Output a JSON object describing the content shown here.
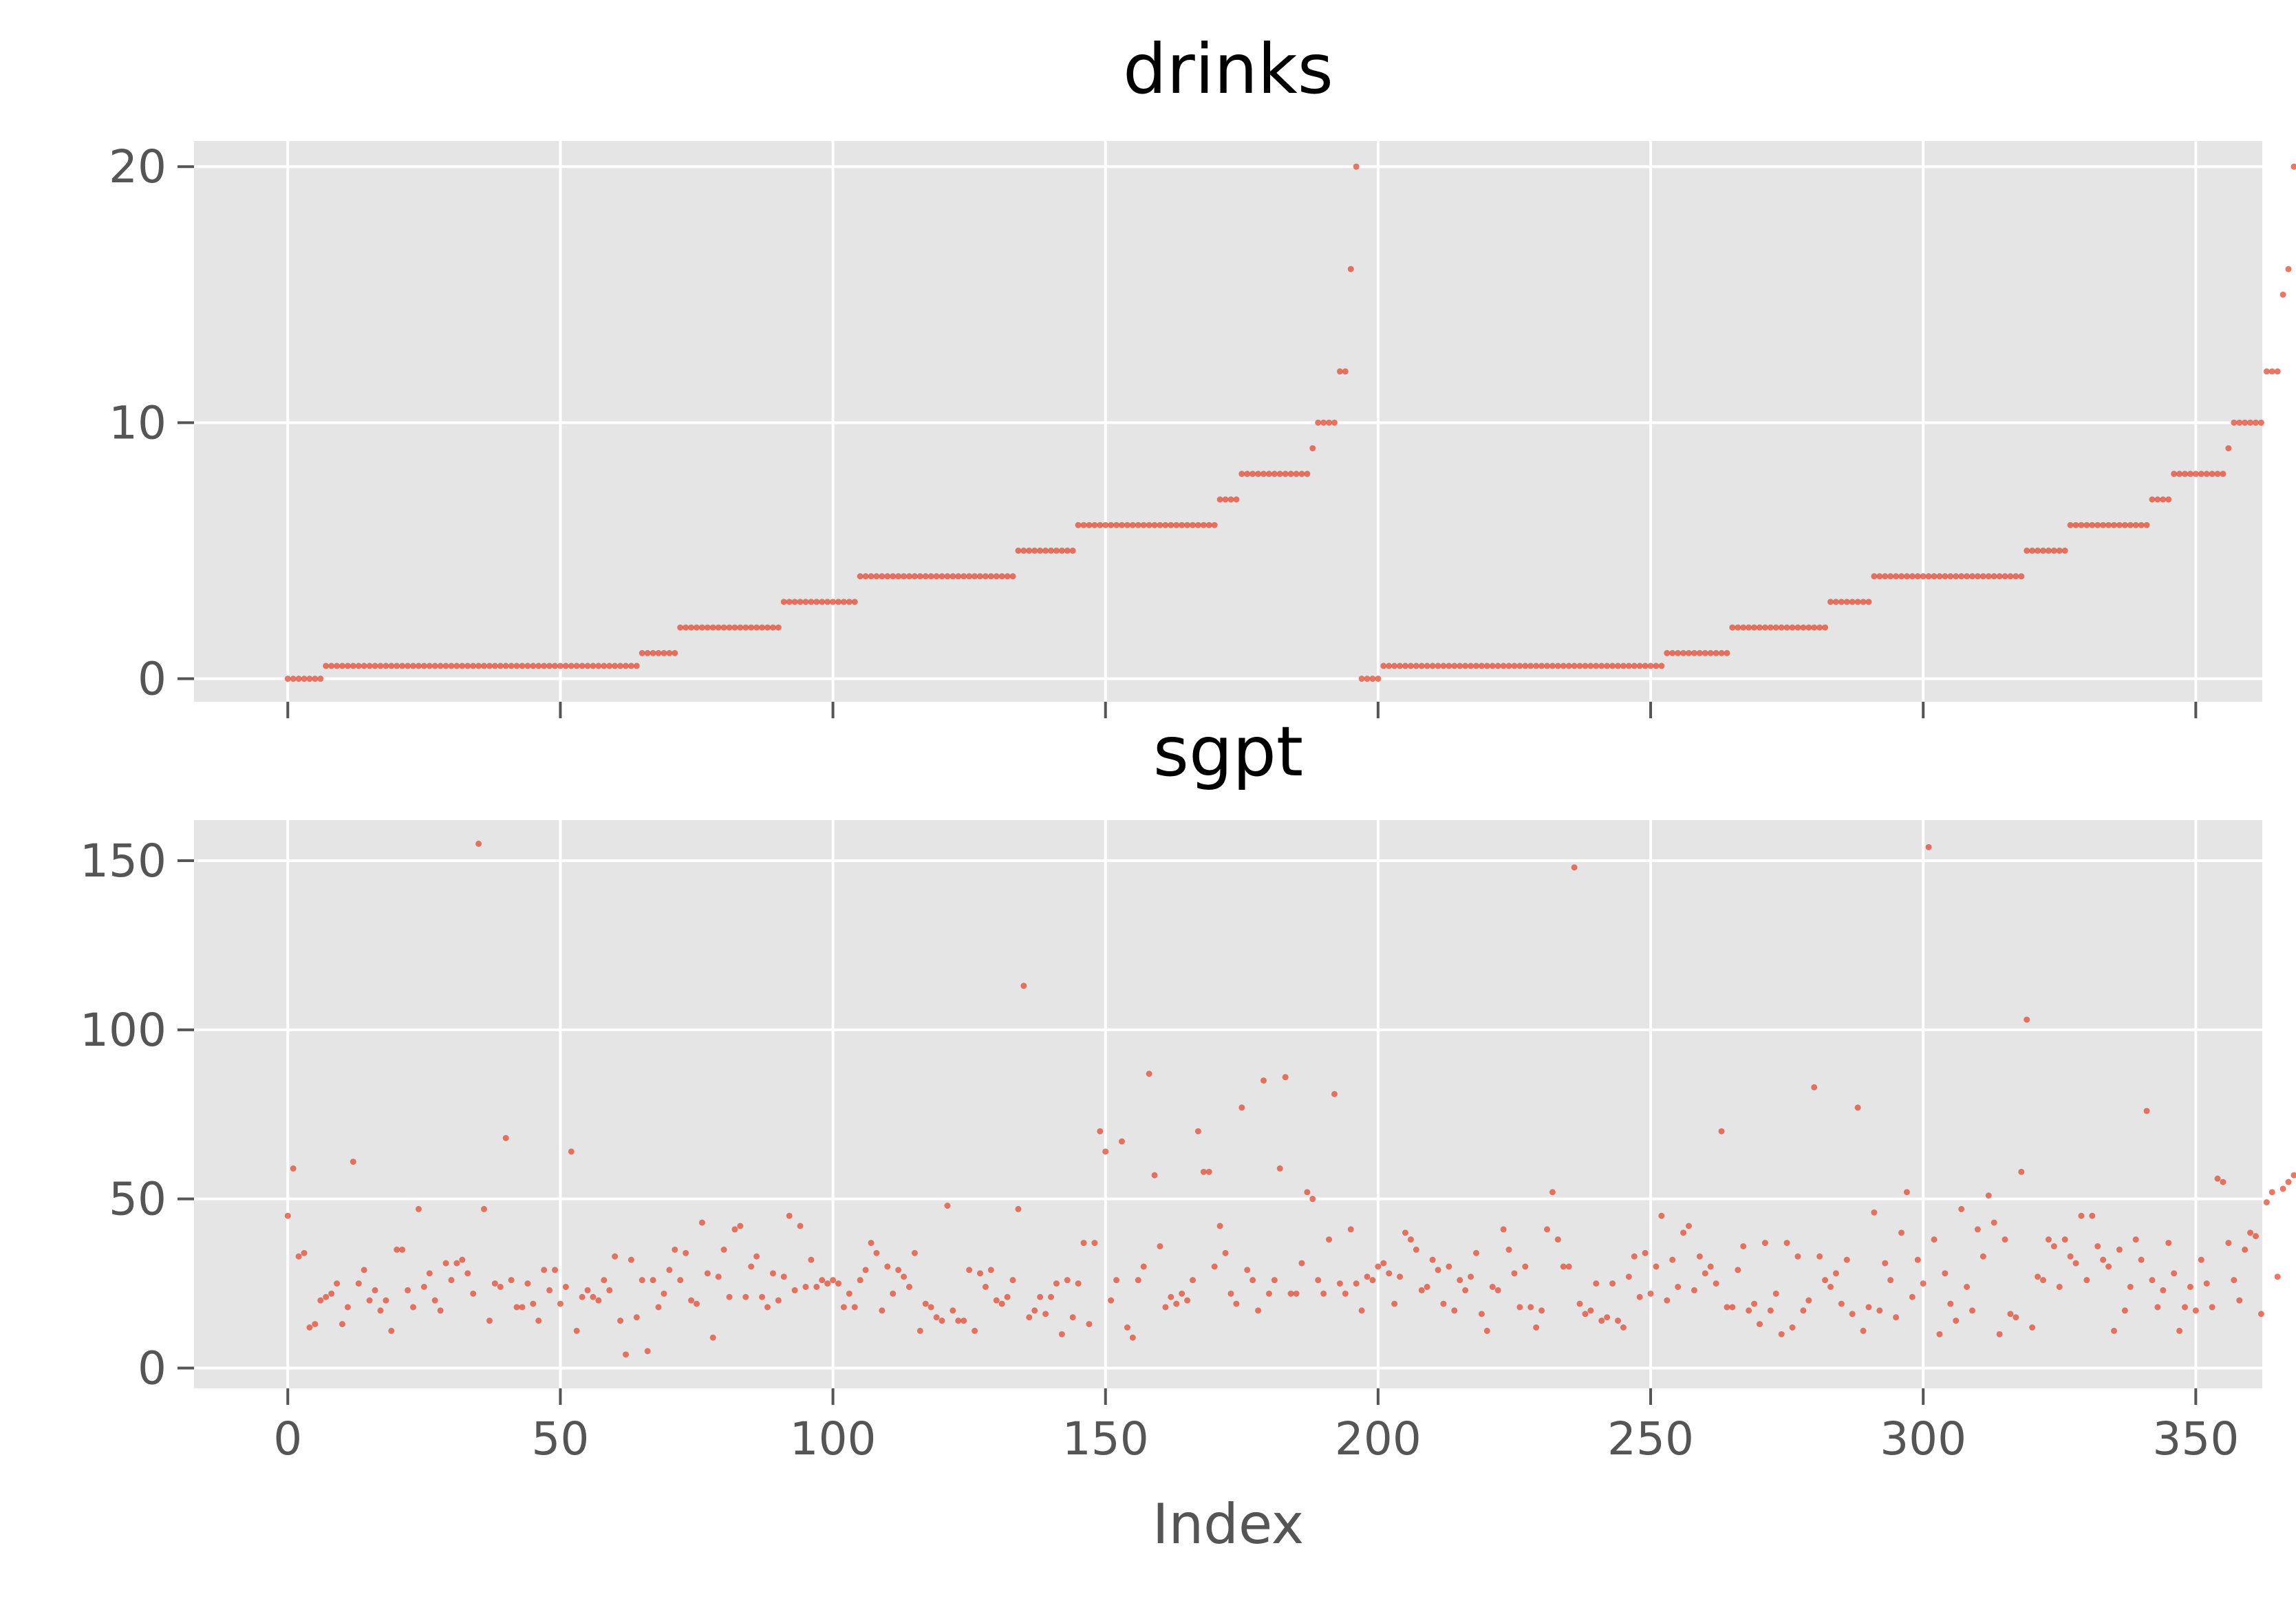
{
  "chart_data": [
    {
      "type": "scatter",
      "title": "drinks",
      "xlabel": "",
      "ylabel": "",
      "xlim": [
        -17.2,
        362.2
      ],
      "ylim": [
        -0.9,
        21.0
      ],
      "xticks": [
        0,
        50,
        100,
        150,
        200,
        250,
        300,
        350
      ],
      "xtick_labels_visible": false,
      "yticks": [
        0,
        10,
        20
      ],
      "ytick_labels": [
        "0",
        "10",
        "20"
      ],
      "grid": true,
      "color": "#e24a33",
      "series": [
        {
          "x_start": 0,
          "values": [
            0,
            0,
            0,
            0,
            0,
            0,
            0,
            0.5,
            0.5,
            0.5,
            0.5,
            0.5,
            0.5,
            0.5,
            0.5,
            0.5,
            0.5,
            0.5,
            0.5,
            0.5,
            0.5,
            0.5,
            0.5,
            0.5,
            0.5,
            0.5,
            0.5,
            0.5,
            0.5,
            0.5,
            0.5,
            0.5,
            0.5,
            0.5,
            0.5,
            0.5,
            0.5,
            0.5,
            0.5,
            0.5,
            0.5,
            0.5,
            0.5,
            0.5,
            0.5,
            0.5,
            0.5,
            0.5,
            0.5,
            0.5,
            0.5,
            0.5,
            0.5,
            0.5,
            0.5,
            0.5,
            0.5,
            0.5,
            0.5,
            0.5,
            0.5,
            0.5,
            0.5,
            0.5,
            0.5,
            1,
            1,
            1,
            1,
            1,
            1,
            1,
            2,
            2,
            2,
            2,
            2,
            2,
            2,
            2,
            2,
            2,
            2,
            2,
            2,
            2,
            2,
            2,
            2,
            2,
            2,
            3,
            3,
            3,
            3,
            3,
            3,
            3,
            3,
            3,
            3,
            3,
            3,
            3,
            3,
            4,
            4,
            4,
            4,
            4,
            4,
            4,
            4,
            4,
            4,
            4,
            4,
            4,
            4,
            4,
            4,
            4,
            4,
            4,
            4,
            4,
            4,
            4,
            4,
            4,
            4,
            4,
            4,
            4,
            5,
            5,
            5,
            5,
            5,
            5,
            5,
            5,
            5,
            5,
            5,
            6,
            6,
            6,
            6,
            6,
            6,
            6,
            6,
            6,
            6,
            6,
            6,
            6,
            6,
            6,
            6,
            6,
            6,
            6,
            6,
            6,
            6,
            6,
            6,
            6,
            6,
            7,
            7,
            7,
            7,
            8,
            8,
            8,
            8,
            8,
            8,
            8,
            8,
            8,
            8,
            8,
            8,
            8,
            9,
            10,
            10,
            10,
            10,
            12,
            12,
            16,
            20,
            0,
            0,
            0,
            0,
            0.5,
            0.5,
            0.5,
            0.5,
            0.5,
            0.5,
            0.5,
            0.5,
            0.5,
            0.5,
            0.5,
            0.5,
            0.5,
            0.5,
            0.5,
            0.5,
            0.5,
            0.5,
            0.5,
            0.5,
            0.5,
            0.5,
            0.5,
            0.5,
            0.5,
            0.5,
            0.5,
            0.5,
            0.5,
            0.5,
            0.5,
            0.5,
            0.5,
            0.5,
            0.5,
            0.5,
            0.5,
            0.5,
            0.5,
            0.5,
            0.5,
            0.5,
            0.5,
            0.5,
            0.5,
            0.5,
            0.5,
            0.5,
            0.5,
            0.5,
            0.5,
            0.5,
            1,
            1,
            1,
            1,
            1,
            1,
            1,
            1,
            1,
            1,
            1,
            1,
            2,
            2,
            2,
            2,
            2,
            2,
            2,
            2,
            2,
            2,
            2,
            2,
            2,
            2,
            2,
            2,
            2,
            2,
            3,
            3,
            3,
            3,
            3,
            3,
            3,
            3,
            4,
            4,
            4,
            4,
            4,
            4,
            4,
            4,
            4,
            4,
            4,
            4,
            4,
            4,
            4,
            4,
            4,
            4,
            4,
            4,
            4,
            4,
            4,
            4,
            4,
            4,
            4,
            4,
            5,
            5,
            5,
            5,
            5,
            5,
            5,
            5,
            6,
            6,
            6,
            6,
            6,
            6,
            6,
            6,
            6,
            6,
            6,
            6,
            6,
            6,
            6,
            7,
            7,
            7,
            7,
            8,
            8,
            8,
            8,
            8,
            8,
            8,
            8,
            8,
            8,
            9,
            10,
            10,
            10,
            10,
            10,
            10,
            12,
            12,
            12,
            15,
            16,
            20
          ]
        }
      ]
    },
    {
      "type": "scatter",
      "title": "sgpt",
      "xlabel": "Index",
      "ylabel": "",
      "xlim": [
        -17.2,
        362.2
      ],
      "ylim": [
        -6,
        162
      ],
      "xticks": [
        0,
        50,
        100,
        150,
        200,
        250,
        300,
        350
      ],
      "xtick_labels": [
        "0",
        "50",
        "100",
        "150",
        "200",
        "250",
        "300",
        "350"
      ],
      "yticks": [
        0,
        50,
        100,
        150
      ],
      "ytick_labels": [
        "0",
        "50",
        "100",
        "150"
      ],
      "grid": true,
      "color": "#e24a33",
      "series": [
        {
          "x_start": 0,
          "values": [
            45,
            59,
            33,
            34,
            12,
            13,
            20,
            21,
            22,
            25,
            13,
            18,
            61,
            25,
            29,
            20,
            23,
            17,
            20,
            11,
            35,
            35,
            23,
            18,
            47,
            24,
            28,
            20,
            17,
            31,
            26,
            31,
            32,
            28,
            22,
            155,
            47,
            14,
            25,
            24,
            68,
            26,
            18,
            18,
            25,
            19,
            14,
            29,
            23,
            29,
            19,
            24,
            64,
            11,
            21,
            23,
            21,
            20,
            26,
            23,
            33,
            14,
            4,
            32,
            15,
            26,
            5,
            26,
            18,
            22,
            29,
            35,
            26,
            34,
            20,
            19,
            43,
            28,
            9,
            27,
            35,
            21,
            41,
            42,
            21,
            30,
            33,
            21,
            18,
            28,
            20,
            27,
            45,
            23,
            42,
            24,
            32,
            24,
            26,
            25,
            26,
            25,
            18,
            22,
            18,
            26,
            29,
            37,
            34,
            17,
            30,
            22,
            29,
            27,
            24,
            34,
            11,
            19,
            18,
            15,
            14,
            48,
            17,
            14,
            14,
            29,
            11,
            28,
            24,
            29,
            20,
            19,
            21,
            26,
            47,
            113,
            15,
            17,
            21,
            16,
            21,
            25,
            10,
            26,
            15,
            25,
            37,
            13,
            37,
            70,
            64,
            20,
            26,
            67,
            12,
            9,
            26,
            30,
            87,
            57,
            36,
            18,
            21,
            19,
            22,
            20,
            26,
            70,
            58,
            58,
            30,
            42,
            34,
            22,
            19,
            77,
            29,
            26,
            17,
            85,
            22,
            26,
            59,
            86,
            22,
            22,
            31,
            52,
            50,
            26,
            22,
            38,
            81,
            25,
            22,
            41,
            25,
            17,
            27,
            26,
            30,
            31,
            28,
            19,
            27,
            40,
            38,
            35,
            23,
            24,
            32,
            29,
            19,
            30,
            17,
            26,
            23,
            27,
            34,
            16,
            11,
            24,
            23,
            41,
            35,
            28,
            18,
            30,
            18,
            12,
            17,
            41,
            52,
            38,
            30,
            30,
            148,
            19,
            16,
            17,
            25,
            14,
            15,
            25,
            14,
            12,
            27,
            33,
            21,
            34,
            22,
            30,
            45,
            20,
            32,
            24,
            40,
            42,
            23,
            33,
            28,
            30,
            25,
            70,
            18,
            18,
            29,
            36,
            17,
            19,
            13,
            37,
            17,
            22,
            10,
            37,
            12,
            33,
            17,
            20,
            83,
            33,
            26,
            24,
            28,
            19,
            32,
            16,
            77,
            11,
            18,
            46,
            17,
            31,
            26,
            15,
            40,
            52,
            21,
            32,
            25,
            154,
            38,
            10,
            28,
            19,
            14,
            47,
            24,
            17,
            41,
            33,
            51,
            43,
            10,
            38,
            16,
            15,
            58,
            103,
            12,
            27,
            26,
            38,
            36,
            24,
            38,
            33,
            31,
            45,
            26,
            45,
            36,
            32,
            30,
            11,
            35,
            17,
            24,
            38,
            32,
            76,
            26,
            18,
            23,
            37,
            28,
            11,
            18,
            24,
            17,
            32,
            25,
            18,
            56,
            55,
            37,
            26,
            20,
            35,
            40,
            39,
            16,
            49,
            52,
            27,
            53,
            55,
            57
          ]
        }
      ]
    }
  ]
}
